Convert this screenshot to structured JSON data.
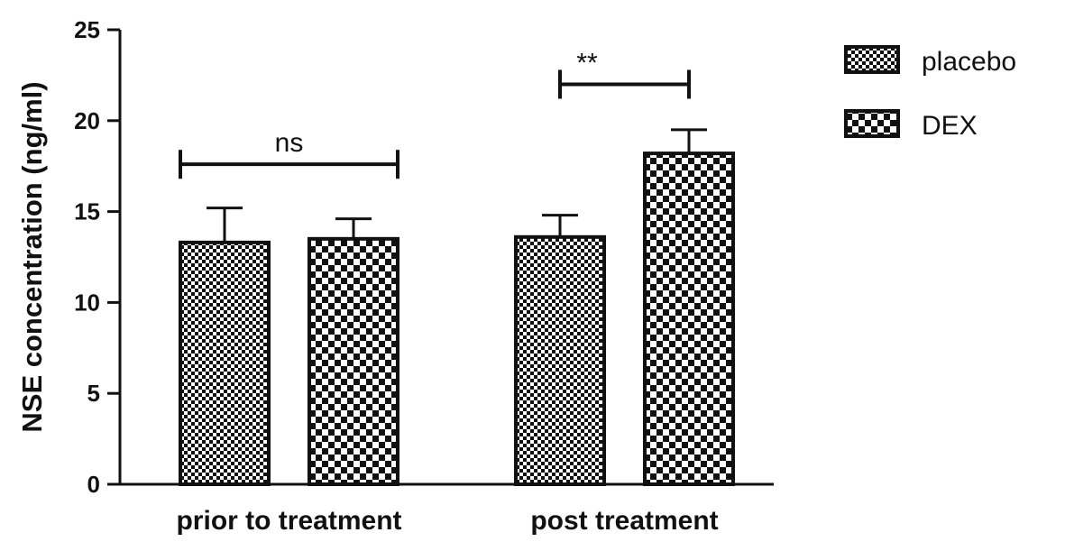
{
  "chart_data": {
    "type": "bar",
    "title": "",
    "xlabel": "",
    "ylabel": "NSE concentration (ng/ml)",
    "ylim": [
      0,
      25
    ],
    "yticks": [
      0,
      5,
      10,
      15,
      20,
      25
    ],
    "grid": false,
    "legend_position": "top-right",
    "categories": [
      "prior to treatment",
      "post treatment"
    ],
    "series": [
      {
        "name": "placebo",
        "values": [
          13.3,
          13.6
        ],
        "errors": [
          1.9,
          1.2
        ],
        "pattern": "fine-checker"
      },
      {
        "name": "DEX",
        "values": [
          13.5,
          18.2
        ],
        "errors": [
          1.1,
          1.3
        ],
        "pattern": "coarse-checker"
      }
    ],
    "annotations": [
      {
        "label": "ns",
        "category": "prior to treatment",
        "y": 17.6
      },
      {
        "label": "**",
        "category": "post treatment",
        "y": 22.0
      }
    ],
    "colors": {
      "ink": "#111111",
      "background": "#ffffff"
    }
  }
}
